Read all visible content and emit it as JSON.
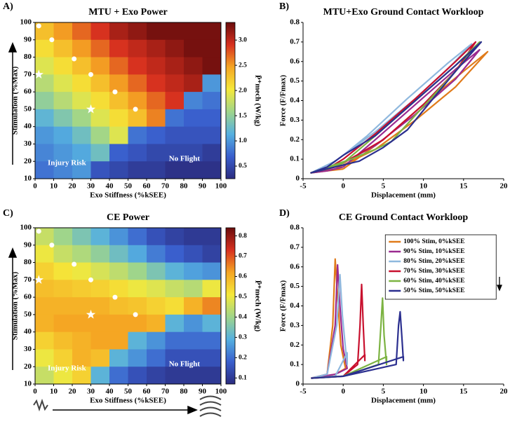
{
  "chart_data": [
    {
      "type": "contour",
      "panel": "A)",
      "title": "MTU + Exo Power",
      "x_label": "Exo Stiffness (%kSEE)",
      "y_label": "Stimulation (%Max)",
      "colorbar_label": "P̄⁺mech (W/kg)",
      "xlim": [
        0,
        100
      ],
      "ylim": [
        10,
        100
      ],
      "xticks": [
        0,
        10,
        20,
        30,
        40,
        50,
        60,
        70,
        80,
        90,
        100
      ],
      "yticks": [
        10,
        20,
        30,
        40,
        50,
        60,
        70,
        80,
        90,
        100
      ],
      "zlim": [
        0.25,
        3.35
      ],
      "zticks": [
        0.5,
        {
          "value": 1,
          "label": "1.0"
        },
        1.5,
        {
          "value": 2,
          "label": "2.0"
        },
        2.5,
        {
          "value": 3,
          "label": "3.0"
        }
      ],
      "colormap": [
        "#2b2c7f",
        "#3a5fcd",
        "#55b0e0",
        "#9fd58b",
        "#f5e93a",
        "#f5a623",
        "#d7301f",
        "#6a0d0d"
      ],
      "x": [
        5,
        15,
        25,
        35,
        45,
        55,
        65,
        75,
        85,
        95
      ],
      "y": [
        95,
        85,
        75,
        65,
        55,
        45,
        35,
        25,
        15
      ],
      "z": [
        [
          2.3,
          2.5,
          2.7,
          2.9,
          3.1,
          3.2,
          3.3,
          3.3,
          3.3,
          3.3
        ],
        [
          2.1,
          2.3,
          2.5,
          2.7,
          2.9,
          3.0,
          3.1,
          3.2,
          3.3,
          3.3
        ],
        [
          1.9,
          2.1,
          2.3,
          2.5,
          2.7,
          2.9,
          3.0,
          3.1,
          3.2,
          3.3
        ],
        [
          1.7,
          1.9,
          2.1,
          2.3,
          2.5,
          2.7,
          2.9,
          3.0,
          3.1,
          1.0
        ],
        [
          1.5,
          1.7,
          1.9,
          2.1,
          2.3,
          2.5,
          2.7,
          2.9,
          0.9,
          0.8
        ],
        [
          1.2,
          1.4,
          1.6,
          1.9,
          2.1,
          2.3,
          2.6,
          0.8,
          0.7,
          0.7
        ],
        [
          1.0,
          1.1,
          1.3,
          1.6,
          1.9,
          0.8,
          0.7,
          0.6,
          0.6,
          0.6
        ],
        [
          0.9,
          1.0,
          1.1,
          1.3,
          0.7,
          0.6,
          0.5,
          0.5,
          0.5,
          0.4
        ],
        [
          0.8,
          0.9,
          1.0,
          0.6,
          0.5,
          0.4,
          0.4,
          0.3,
          0.3,
          0.3
        ]
      ],
      "circles": {
        "x": [
          2,
          9,
          21,
          30,
          43,
          54
        ],
        "y": [
          98,
          90,
          79,
          70,
          60,
          50
        ]
      },
      "stars": {
        "x": [
          2,
          30
        ],
        "y": [
          70,
          50
        ]
      },
      "annotations": [
        "Injury Risk",
        "No Flight"
      ]
    },
    {
      "type": "line",
      "panel": "B)",
      "title": "MTU+Exo Ground Contact Workloop",
      "x_label": "Displacement (mm)",
      "y_label": "Force (F/Fmax)",
      "xlim": [
        -5,
        20
      ],
      "ylim": [
        0,
        0.8
      ],
      "xticks": [
        -5,
        0,
        5,
        10,
        15,
        20
      ],
      "yticks": [
        0,
        0.1,
        0.2,
        0.3,
        0.4,
        0.5,
        0.6,
        0.7,
        0.8
      ],
      "series": [
        {
          "color": "#e07b1a",
          "x": [
            0,
            -2,
            -4,
            -1,
            4,
            9,
            14,
            18,
            15,
            10,
            5,
            0
          ],
          "values": [
            0.05,
            0.04,
            0.03,
            0.05,
            0.15,
            0.3,
            0.47,
            0.65,
            0.55,
            0.38,
            0.2,
            0.05
          ]
        },
        {
          "color": "#9b2a8f",
          "x": [
            0,
            -2,
            -4,
            -1,
            4,
            9,
            14,
            17,
            14,
            9,
            4,
            0
          ],
          "values": [
            0.06,
            0.04,
            0.03,
            0.06,
            0.17,
            0.33,
            0.51,
            0.66,
            0.56,
            0.38,
            0.2,
            0.06
          ]
        },
        {
          "color": "#8fb8de",
          "x": [
            0,
            -2,
            -4,
            -1,
            4,
            9,
            13,
            16,
            13,
            8,
            3,
            0
          ],
          "values": [
            0.12,
            0.06,
            0.03,
            0.09,
            0.24,
            0.41,
            0.56,
            0.69,
            0.59,
            0.41,
            0.22,
            0.12
          ]
        },
        {
          "color": "#c8102e",
          "x": [
            0,
            -2,
            -4,
            0,
            5,
            10,
            14,
            16.5,
            14,
            9,
            4,
            0
          ],
          "values": [
            0.1,
            0.05,
            0.03,
            0.08,
            0.2,
            0.38,
            0.55,
            0.7,
            0.6,
            0.41,
            0.23,
            0.1
          ]
        },
        {
          "color": "#7cb342",
          "x": [
            0,
            -2,
            -4,
            1,
            4,
            6,
            10,
            14,
            17,
            14,
            9,
            4,
            0
          ],
          "values": [
            0.08,
            0.05,
            0.03,
            0.1,
            0.15,
            0.19,
            0.37,
            0.55,
            0.7,
            0.58,
            0.4,
            0.22,
            0.08
          ]
        },
        {
          "color": "#2b2f8f",
          "x": [
            0,
            -2,
            -4,
            2,
            5,
            8,
            11,
            14,
            17.2,
            14,
            9,
            4,
            0
          ],
          "values": [
            0.12,
            0.06,
            0.03,
            0.09,
            0.16,
            0.25,
            0.4,
            0.55,
            0.7,
            0.58,
            0.4,
            0.22,
            0.12
          ]
        }
      ]
    },
    {
      "type": "contour",
      "panel": "C)",
      "title": "CE Power",
      "x_label": "Exo Stiffness (%kSEE)",
      "y_label": "Stimulation (%Max)",
      "colorbar_label": "P̄⁺mech (W/kg)",
      "xlim": [
        0,
        100
      ],
      "ylim": [
        10,
        100
      ],
      "xticks": [
        0,
        10,
        20,
        30,
        40,
        50,
        60,
        70,
        80,
        90,
        100
      ],
      "yticks": [
        10,
        20,
        30,
        40,
        50,
        60,
        70,
        80,
        90,
        100
      ],
      "zlim": [
        0.07,
        0.84
      ],
      "zticks": [
        0.1,
        0.2,
        0.3,
        0.4,
        0.5,
        0.6,
        0.7,
        0.8
      ],
      "colormap": [
        "#2b2c7f",
        "#3a5fcd",
        "#55b0e0",
        "#9fd58b",
        "#f5e93a",
        "#f5a623",
        "#d7301f",
        "#6a0d0d"
      ],
      "x": [
        5,
        15,
        25,
        35,
        45,
        55,
        65,
        75,
        85,
        95
      ],
      "y": [
        95,
        85,
        75,
        65,
        55,
        45,
        35,
        25,
        15
      ],
      "z": [
        [
          0.45,
          0.4,
          0.35,
          0.3,
          0.25,
          0.2,
          0.15,
          0.12,
          0.1,
          0.1
        ],
        [
          0.5,
          0.45,
          0.42,
          0.38,
          0.33,
          0.28,
          0.22,
          0.18,
          0.15,
          0.12
        ],
        [
          0.55,
          0.52,
          0.5,
          0.47,
          0.44,
          0.4,
          0.35,
          0.3,
          0.27,
          0.25
        ],
        [
          0.58,
          0.57,
          0.56,
          0.55,
          0.53,
          0.5,
          0.48,
          0.45,
          0.43,
          0.5
        ],
        [
          0.6,
          0.6,
          0.6,
          0.6,
          0.58,
          0.57,
          0.55,
          0.53,
          0.6,
          0.65
        ],
        [
          0.6,
          0.62,
          0.62,
          0.62,
          0.62,
          0.62,
          0.6,
          0.3,
          0.25,
          0.3
        ],
        [
          0.55,
          0.58,
          0.6,
          0.62,
          0.62,
          0.3,
          0.25,
          0.2,
          0.2,
          0.2
        ],
        [
          0.5,
          0.55,
          0.6,
          0.58,
          0.3,
          0.25,
          0.2,
          0.15,
          0.15,
          0.15
        ],
        [
          0.45,
          0.5,
          0.55,
          0.3,
          0.2,
          0.15,
          0.12,
          0.1,
          0.1,
          0.1
        ]
      ],
      "circles": {
        "x": [
          2,
          9,
          21,
          30,
          43,
          54
        ],
        "y": [
          98,
          90,
          79,
          70,
          60,
          50
        ]
      },
      "stars": {
        "x": [
          2,
          30
        ],
        "y": [
          70,
          50
        ]
      },
      "annotations": [
        "Injury Risk",
        "No Flight"
      ]
    },
    {
      "type": "line",
      "panel": "D)",
      "title": "CE Ground Contact Workloop",
      "x_label": "Displacement (mm)",
      "y_label": "Force (F/Fmax)",
      "xlim": [
        -5,
        20
      ],
      "ylim": [
        0,
        0.8
      ],
      "xticks": [
        -5,
        0,
        5,
        10,
        15,
        20
      ],
      "yticks": [
        0,
        0.1,
        0.2,
        0.3,
        0.4,
        0.5,
        0.6,
        0.7,
        0.8
      ],
      "series": [
        {
          "name": "100% Stim, 0%kSEE",
          "color": "#e07b1a",
          "x": [
            -4,
            -2,
            -1.3,
            -1,
            -0.7,
            -0.3,
            0.3,
            -1,
            -4
          ],
          "values": [
            0.03,
            0.05,
            0.3,
            0.64,
            0.45,
            0.2,
            0.08,
            0.05,
            0.03
          ]
        },
        {
          "name": "90% Stim, 10%kSEE",
          "color": "#9b2a8f",
          "x": [
            -4,
            -2,
            -1,
            -0.7,
            -0.4,
            0,
            0.5,
            -1,
            -4
          ],
          "values": [
            0.03,
            0.05,
            0.3,
            0.61,
            0.4,
            0.18,
            0.08,
            0.05,
            0.03
          ]
        },
        {
          "name": "80% Stim, 20%kSEE",
          "color": "#8fb8de",
          "x": [
            -4,
            -2,
            -0.8,
            -0.4,
            -0.1,
            0.3,
            0.5,
            0.5,
            -1,
            -4
          ],
          "values": [
            0.03,
            0.05,
            0.3,
            0.56,
            0.35,
            0.18,
            0.1,
            0.16,
            0.04,
            0.03
          ]
        },
        {
          "name": "70% Stim, 30%kSEE",
          "color": "#c8102e",
          "x": [
            -4,
            0,
            1.8,
            2.1,
            2.3,
            2.5,
            2.7,
            2.7,
            0,
            -4
          ],
          "values": [
            0.03,
            0.04,
            0.1,
            0.3,
            0.51,
            0.3,
            0.12,
            0.15,
            0.04,
            0.03
          ]
        },
        {
          "name": "60% Stim, 40%kSEE",
          "color": "#7cb342",
          "x": [
            -4,
            0,
            4.4,
            4.7,
            4.9,
            5.1,
            5.4,
            5.4,
            0,
            -4
          ],
          "values": [
            0.03,
            0.04,
            0.1,
            0.3,
            0.44,
            0.25,
            0.1,
            0.14,
            0.04,
            0.03
          ]
        },
        {
          "name": "50% Stim, 50%kSEE",
          "color": "#2b2f8f",
          "x": [
            -4,
            0,
            6.6,
            6.9,
            7.1,
            7.3,
            7.5,
            7.5,
            0,
            -4
          ],
          "values": [
            0.03,
            0.04,
            0.1,
            0.3,
            0.37,
            0.25,
            0.12,
            0.14,
            0.04,
            0.03
          ]
        }
      ]
    }
  ]
}
